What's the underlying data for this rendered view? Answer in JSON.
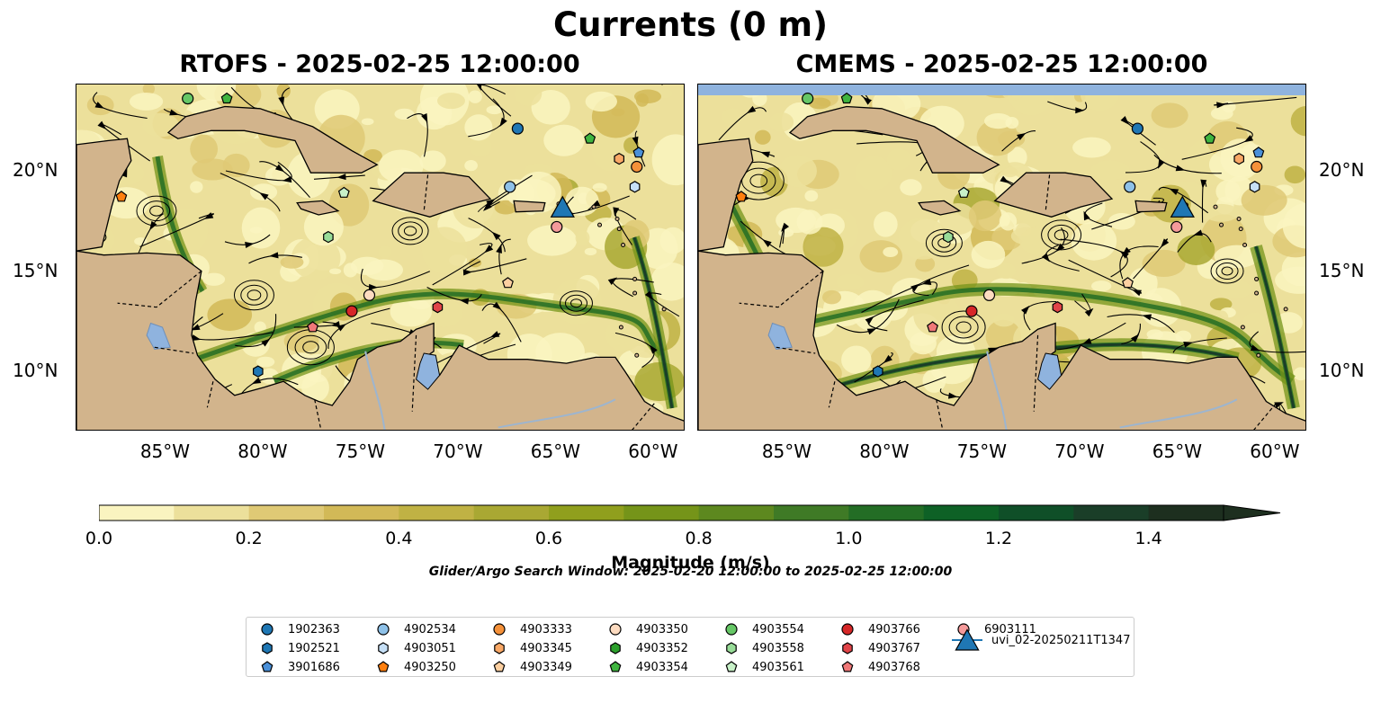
{
  "figure": {
    "title": "Currents (0 m)",
    "panels": [
      {
        "title": "RTOFS - 2025-02-25 12:00:00"
      },
      {
        "title": "CMEMS - 2025-02-25 12:00:00"
      }
    ],
    "lon_ticks": [
      "85°W",
      "80°W",
      "75°W",
      "70°W",
      "65°W",
      "60°W"
    ],
    "lat_ticks": [
      "20°N",
      "15°N",
      "10°N"
    ],
    "colors": {
      "land": "#d2b48c",
      "water": "#8fb3de",
      "ocean_low": "#f7f0b4",
      "ocean_high": "#1b301b"
    }
  },
  "colorbar": {
    "label": "Magnitude (m/s)",
    "ticks": [
      "0.0",
      "0.2",
      "0.4",
      "0.6",
      "0.8",
      "1.0",
      "1.2",
      "1.4"
    ],
    "range": [
      0.0,
      1.5
    ],
    "colors": [
      "#faf4c0",
      "#ece09b",
      "#dfc975",
      "#d2b957",
      "#c0b244",
      "#a9a833",
      "#909f1d",
      "#759419",
      "#5d881f",
      "#3f7a26",
      "#236d25",
      "#0e6126",
      "#0f4f28",
      "#1a3e28",
      "#1d2f1f"
    ]
  },
  "search_window": "Glider/Argo Search Window: 2025-02-20 12:00:00 to 2025-02-25 12:00:00",
  "legend": {
    "items": [
      {
        "label": "1902363",
        "marker": "circle",
        "color": "#1f77b4"
      },
      {
        "label": "1902521",
        "marker": "hexagon",
        "color": "#1f77b4"
      },
      {
        "label": "3901686",
        "marker": "pentagon",
        "color": "#4a90d9"
      },
      {
        "label": "4902534",
        "marker": "circle",
        "color": "#8ec1e8"
      },
      {
        "label": "4903051",
        "marker": "hexagon",
        "color": "#c6e0f7"
      },
      {
        "label": "4903250",
        "marker": "pentagon",
        "color": "#ff7f0e"
      },
      {
        "label": "4903333",
        "marker": "circle",
        "color": "#f5913a"
      },
      {
        "label": "4903345",
        "marker": "hexagon",
        "color": "#f9a866"
      },
      {
        "label": "4903349",
        "marker": "pentagon",
        "color": "#fccfa0"
      },
      {
        "label": "4903350",
        "marker": "circle",
        "color": "#fddbc0"
      },
      {
        "label": "4903352",
        "marker": "hexagon",
        "color": "#2ca02c"
      },
      {
        "label": "4903354",
        "marker": "pentagon",
        "color": "#3fb43f"
      },
      {
        "label": "4903554",
        "marker": "circle",
        "color": "#66c766"
      },
      {
        "label": "4903558",
        "marker": "hexagon",
        "color": "#98dc98"
      },
      {
        "label": "4903561",
        "marker": "pentagon",
        "color": "#c8f1c8"
      },
      {
        "label": "4903766",
        "marker": "circle",
        "color": "#d62728"
      },
      {
        "label": "4903767",
        "marker": "hexagon",
        "color": "#e04448"
      },
      {
        "label": "4903768",
        "marker": "pentagon",
        "color": "#f07878"
      },
      {
        "label": "6903111",
        "marker": "circle",
        "color": "#f59a9a"
      },
      {
        "label": "uvi_02-20250211T1347",
        "marker": "triangle",
        "color": "#1f77b4"
      }
    ]
  },
  "markers_left": [
    {
      "id": "1902363",
      "lon": -67.0,
      "lat": 22.1
    },
    {
      "id": "4902534",
      "lon": -67.4,
      "lat": 19.2
    },
    {
      "id": "4903351",
      "lon": -61.0,
      "lat": 19.2
    },
    {
      "id": "4903333",
      "lon": -60.9,
      "lat": 20.2
    },
    {
      "id": "4903345",
      "lon": -61.8,
      "lat": 20.6
    },
    {
      "id": "3901686",
      "lon": -60.8,
      "lat": 20.9
    },
    {
      "id": "4903354",
      "lon": -63.3,
      "lat": 21.6
    },
    {
      "id": "4903554",
      "lon": -83.9,
      "lat": 23.6
    },
    {
      "id": "4903354b",
      "lon": -81.9,
      "lat": 23.6
    },
    {
      "id": "4903250",
      "lon": -87.3,
      "lat": 18.7
    },
    {
      "id": "4903561",
      "lon": -75.9,
      "lat": 18.9
    },
    {
      "id": "4903558",
      "lon": -76.7,
      "lat": 16.7
    },
    {
      "id": "6903111",
      "lon": -65.0,
      "lat": 17.2
    },
    {
      "id": "uvi_02-20250211T1347",
      "lon": -64.7,
      "lat": 18.1
    },
    {
      "id": "4903349",
      "lon": -67.5,
      "lat": 14.4
    },
    {
      "id": "4903350",
      "lon": -74.6,
      "lat": 13.8
    },
    {
      "id": "4903767",
      "lon": -71.1,
      "lat": 13.2
    },
    {
      "id": "4903766",
      "lon": -75.5,
      "lat": 13.0
    },
    {
      "id": "4903768",
      "lon": -77.5,
      "lat": 12.2
    },
    {
      "id": "1902521",
      "lon": -80.3,
      "lat": 10.0
    }
  ]
}
